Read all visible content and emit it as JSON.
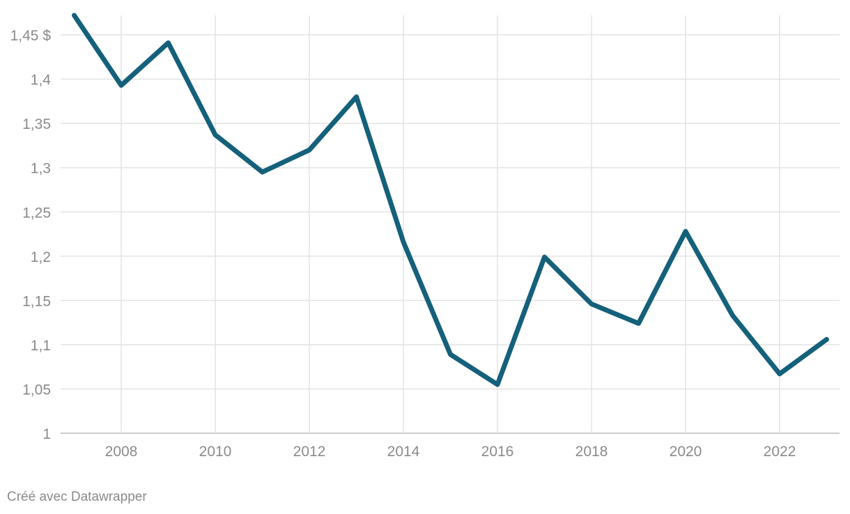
{
  "chart_data": {
    "type": "line",
    "title": "",
    "xlabel": "",
    "ylabel": "",
    "x": [
      2007,
      2008,
      2009,
      2010,
      2011,
      2012,
      2013,
      2014,
      2015,
      2016,
      2017,
      2018,
      2019,
      2020,
      2021,
      2022,
      2023
    ],
    "series": [
      {
        "values": [
          1.472,
          1.393,
          1.441,
          1.337,
          1.295,
          1.32,
          1.38,
          1.216,
          1.089,
          1.055,
          1.199,
          1.146,
          1.124,
          1.228,
          1.133,
          1.067,
          1.106
        ],
        "color": "#15607a"
      }
    ],
    "xlim": [
      2006.8,
      2023.3
    ],
    "ylim": [
      1,
      1.45
    ],
    "x_ticks": [
      2008,
      2010,
      2012,
      2014,
      2016,
      2018,
      2020,
      2022
    ],
    "x_tick_labels": [
      "2008",
      "2010",
      "2012",
      "2014",
      "2016",
      "2018",
      "2020",
      "2022"
    ],
    "y_ticks": [
      1,
      1.05,
      1.1,
      1.15,
      1.2,
      1.25,
      1.3,
      1.35,
      1.4,
      1.45
    ],
    "y_tick_labels": [
      "1",
      "1,05",
      "1,1",
      "1,15",
      "1,2",
      "1,25",
      "1,3",
      "1,35",
      "1,4",
      "1,45 $"
    ],
    "grid": true,
    "legend": "none"
  },
  "footer": {
    "credit": "Créé avec Datawrapper"
  }
}
